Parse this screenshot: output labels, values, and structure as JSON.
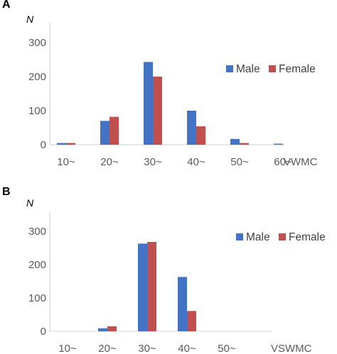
{
  "colors": {
    "male": "#4472C4",
    "female": "#C0504D",
    "axis": "#D9D9D9",
    "text": "#595959"
  },
  "chart_data": [
    {
      "panel": "A",
      "type": "bar",
      "ylabel": "N",
      "xlabel": "VWMC",
      "categories": [
        "10~",
        "20~",
        "30~",
        "40~",
        "50~",
        "60~"
      ],
      "series": [
        {
          "name": "Male",
          "values": [
            5,
            70,
            243,
            100,
            17,
            3
          ]
        },
        {
          "name": "Female",
          "values": [
            5,
            82,
            200,
            54,
            5,
            0
          ]
        }
      ],
      "ylim": [
        0,
        300
      ],
      "yticks": [
        "0",
        "100",
        "200",
        "300"
      ],
      "legend_position": "right"
    },
    {
      "panel": "B",
      "type": "bar",
      "ylabel": "N",
      "xlabel": "VSWMC",
      "categories": [
        "10~",
        "20~",
        "30~",
        "40~",
        "50~"
      ],
      "series": [
        {
          "name": "Male",
          "values": [
            0,
            9,
            263,
            163,
            0
          ]
        },
        {
          "name": "Female",
          "values": [
            0,
            15,
            268,
            61,
            0
          ]
        }
      ],
      "ylim": [
        0,
        300
      ],
      "yticks": [
        "0",
        "100",
        "200",
        "300"
      ],
      "legend_position": "right"
    }
  ]
}
